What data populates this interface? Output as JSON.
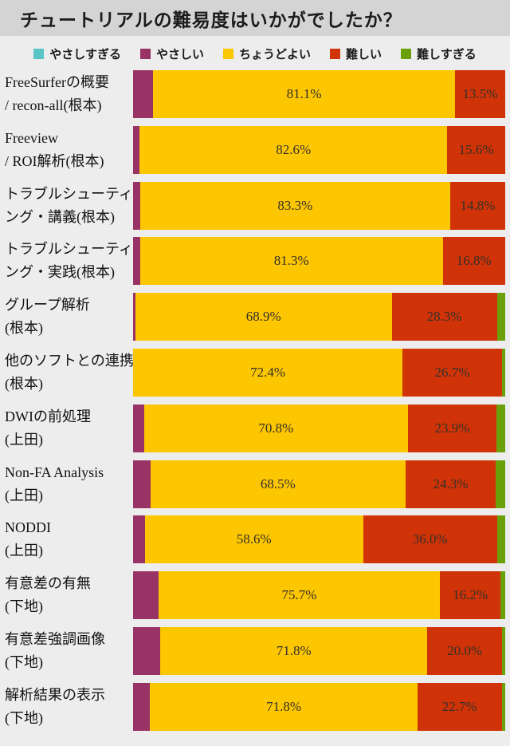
{
  "title": "チュートリアルの難易度はいかがでしたか？",
  "colors": {
    "background": "#EDEDED",
    "title_bar": "#D4D4D4",
    "label_text": "#111111",
    "percent_text": "#35302A",
    "too_easy": "#5BC5C5",
    "easy": "#993366",
    "just_right": "#FCC600",
    "difficult": "#CF3307",
    "too_difficult": "#6AA00A"
  },
  "legend": {
    "items": [
      {
        "key": "too_easy",
        "label": "やさしすぎる",
        "color": "#5BC5C5"
      },
      {
        "key": "easy",
        "label": "やさしい",
        "color": "#993366"
      },
      {
        "key": "just_right",
        "label": "ちょうどよい",
        "color": "#FCC600"
      },
      {
        "key": "difficult",
        "label": "難しい",
        "color": "#CF3307"
      },
      {
        "key": "too_difficult",
        "label": "難しすぎる",
        "color": "#6AA00A"
      }
    ]
  },
  "chart_data": {
    "type": "bar",
    "orientation": "horizontal",
    "stacked": true,
    "unit": "percent",
    "xlim": [
      0,
      100
    ],
    "grid": false,
    "legend_position": "top",
    "series_order": [
      "too_easy",
      "easy",
      "just_right",
      "difficult",
      "too_difficult"
    ],
    "rows": [
      {
        "category": "FreeSurferの概要 / recon-all(根本)",
        "label_lines": [
          "FreeSurferの概要",
          "/ recon-all(根本)"
        ],
        "values": {
          "too_easy": 0,
          "easy": 5.4,
          "just_right": 81.1,
          "difficult": 13.5,
          "too_difficult": 0
        },
        "data_labels": {
          "just_right": "81.1%",
          "difficult": "13.5%"
        }
      },
      {
        "category": "Freeview / ROI解析(根本)",
        "label_lines": [
          "Freeview",
          "/ ROI解析(根本)"
        ],
        "values": {
          "too_easy": 0,
          "easy": 1.8,
          "just_right": 82.6,
          "difficult": 15.6,
          "too_difficult": 0
        },
        "data_labels": {
          "just_right": "82.6%",
          "difficult": "15.6%"
        }
      },
      {
        "category": "トラブルシューティング・講義(根本)",
        "label_lines": [
          "トラブルシューティ",
          "ング・講義(根本)"
        ],
        "values": {
          "too_easy": 0,
          "easy": 1.9,
          "just_right": 83.3,
          "difficult": 14.8,
          "too_difficult": 0
        },
        "data_labels": {
          "just_right": "83.3%",
          "difficult": "14.8%"
        }
      },
      {
        "category": "トラブルシューティング・実践(根本)",
        "label_lines": [
          "トラブルシューティ",
          "ング・実践(根本)"
        ],
        "values": {
          "too_easy": 0,
          "easy": 1.9,
          "just_right": 81.3,
          "difficult": 16.8,
          "too_difficult": 0
        },
        "data_labels": {
          "just_right": "81.3%",
          "difficult": "16.8%"
        }
      },
      {
        "category": "グループ解析 (根本)",
        "label_lines": [
          "グループ解析",
          "(根本)"
        ],
        "values": {
          "too_easy": 0,
          "easy": 0.6,
          "just_right": 68.9,
          "difficult": 28.3,
          "too_difficult": 2.2
        },
        "data_labels": {
          "just_right": "68.9%",
          "difficult": "28.3%"
        }
      },
      {
        "category": "他のソフトとの連携 (根本)",
        "label_lines": [
          "他のソフトとの連携",
          "(根本)"
        ],
        "values": {
          "too_easy": 0,
          "easy": 0,
          "just_right": 72.4,
          "difficult": 26.7,
          "too_difficult": 0.9
        },
        "data_labels": {
          "just_right": "72.4%",
          "difficult": "26.7%"
        }
      },
      {
        "category": "DWIの前処理 (上田)",
        "label_lines": [
          "DWIの前処理",
          "(上田)"
        ],
        "values": {
          "too_easy": 0,
          "easy": 3.0,
          "just_right": 70.8,
          "difficult": 23.9,
          "too_difficult": 2.3
        },
        "data_labels": {
          "just_right": "70.8%",
          "difficult": "23.9%"
        }
      },
      {
        "category": "Non-FA Analysis (上田)",
        "label_lines": [
          "Non-FA Analysis",
          "(上田)"
        ],
        "values": {
          "too_easy": 0,
          "easy": 4.7,
          "just_right": 68.5,
          "difficult": 24.3,
          "too_difficult": 2.5
        },
        "data_labels": {
          "just_right": "68.5%",
          "difficult": "24.3%"
        }
      },
      {
        "category": "NODDI (上田)",
        "label_lines": [
          "NODDI",
          "(上田)"
        ],
        "values": {
          "too_easy": 0,
          "easy": 3.2,
          "just_right": 58.6,
          "difficult": 36.0,
          "too_difficult": 2.2
        },
        "data_labels": {
          "just_right": "58.6%",
          "difficult": "36.0%"
        }
      },
      {
        "category": "有意差の有無 (下地)",
        "label_lines": [
          "有意差の有無",
          "(下地)"
        ],
        "values": {
          "too_easy": 0,
          "easy": 6.8,
          "just_right": 75.7,
          "difficult": 16.2,
          "too_difficult": 1.3
        },
        "data_labels": {
          "just_right": "75.7%",
          "difficult": "16.2%"
        }
      },
      {
        "category": "有意差強調画像 (下地)",
        "label_lines": [
          "有意差強調画像",
          "(下地)"
        ],
        "values": {
          "too_easy": 0,
          "easy": 7.3,
          "just_right": 71.8,
          "difficult": 20.0,
          "too_difficult": 0.9
        },
        "data_labels": {
          "just_right": "71.8%",
          "difficult": "20.0%"
        }
      },
      {
        "category": "解析結果の表示 (下地)",
        "label_lines": [
          "解析結果の表示",
          "(下地)"
        ],
        "values": {
          "too_easy": 0,
          "easy": 4.6,
          "just_right": 71.8,
          "difficult": 22.7,
          "too_difficult": 0.9
        },
        "data_labels": {
          "just_right": "71.8%",
          "difficult": "22.7%"
        }
      }
    ]
  }
}
